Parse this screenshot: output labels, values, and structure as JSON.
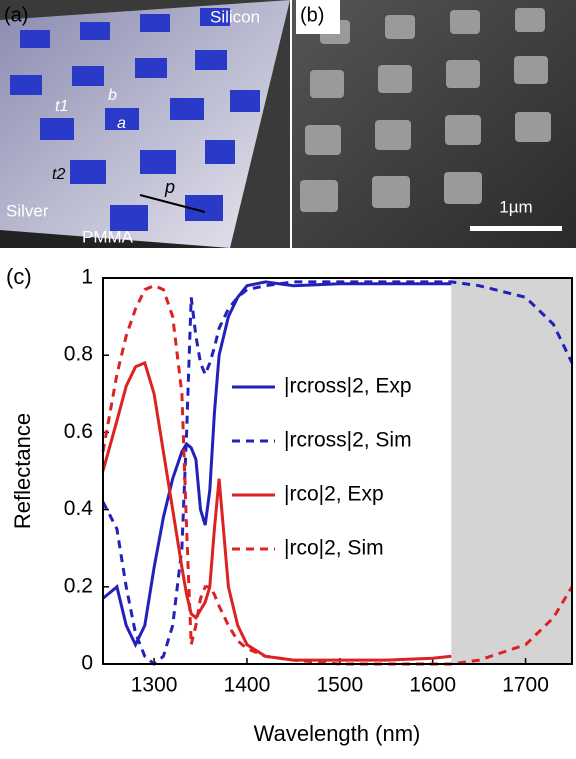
{
  "panels": {
    "a_label": "(a)",
    "silicon": "Silicon",
    "t1": "t1",
    "b": "b",
    "a": "a",
    "t2": "t2",
    "silver": "Silver",
    "pmma": "PMMA",
    "p": "p",
    "b_label": "(b)",
    "scale": "1µm",
    "c_label": "(c)"
  },
  "chart_data": {
    "type": "line",
    "xlabel": "Wavelength (nm)",
    "ylabel": "Reflectance",
    "x": [
      1245,
      1260,
      1270,
      1280,
      1290,
      1300,
      1310,
      1320,
      1330,
      1335,
      1340,
      1345,
      1350,
      1355,
      1360,
      1365,
      1370,
      1380,
      1390,
      1400,
      1420,
      1450,
      1500,
      1550,
      1600,
      1620,
      1650,
      1700,
      1730,
      1750
    ],
    "series": [
      {
        "name": "|rcross|2, Exp",
        "color": "#2222bb",
        "dash": false,
        "values": [
          0.17,
          0.2,
          0.1,
          0.05,
          0.1,
          0.25,
          0.38,
          0.48,
          0.55,
          0.57,
          0.56,
          0.53,
          0.4,
          0.36,
          0.45,
          0.65,
          0.8,
          0.9,
          0.95,
          0.98,
          0.99,
          0.98,
          0.985,
          0.985,
          0.985,
          0.985,
          null,
          null,
          null,
          null
        ]
      },
      {
        "name": "|rcross|2, Sim",
        "color": "#2222bb",
        "dash": true,
        "values": [
          0.42,
          0.35,
          0.2,
          0.08,
          0.02,
          0.0,
          0.02,
          0.1,
          0.3,
          0.6,
          0.95,
          0.85,
          0.78,
          0.75,
          0.78,
          0.82,
          0.87,
          0.92,
          0.95,
          0.97,
          0.98,
          0.99,
          0.99,
          0.99,
          0.99,
          0.99,
          0.98,
          0.95,
          0.88,
          0.78
        ]
      },
      {
        "name": "|rco|2, Exp",
        "color": "#dd2222",
        "dash": false,
        "values": [
          0.5,
          0.63,
          0.72,
          0.77,
          0.78,
          0.7,
          0.55,
          0.4,
          0.25,
          0.18,
          0.13,
          0.12,
          0.14,
          0.16,
          0.2,
          0.35,
          0.48,
          0.2,
          0.1,
          0.05,
          0.02,
          0.01,
          0.01,
          0.01,
          0.015,
          0.02,
          null,
          null,
          null,
          null
        ]
      },
      {
        "name": "|rco|2, Sim",
        "color": "#dd2222",
        "dash": true,
        "values": [
          0.55,
          0.75,
          0.85,
          0.92,
          0.97,
          0.98,
          0.97,
          0.9,
          0.7,
          0.35,
          0.05,
          0.1,
          0.17,
          0.2,
          0.2,
          0.18,
          0.15,
          0.1,
          0.06,
          0.04,
          0.02,
          0.01,
          0.0,
          0.0,
          0.0,
          0.0,
          0.01,
          0.05,
          0.12,
          0.2
        ]
      }
    ],
    "xlim": [
      1245,
      1750
    ],
    "ylim": [
      0,
      1
    ],
    "xticks": [
      1300,
      1400,
      1500,
      1600,
      1700
    ],
    "yticks": [
      0,
      0.2,
      0.4,
      0.6,
      0.8,
      1
    ],
    "shaded_x": [
      1620,
      1750
    ],
    "shade_color": "#d4d4d4"
  }
}
